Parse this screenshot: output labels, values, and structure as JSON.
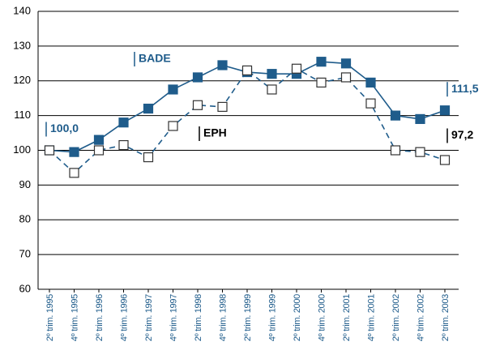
{
  "chart_data": {
    "type": "line",
    "categories": [
      "2º trim. 1995",
      "4º trim. 1995",
      "2º trim. 1996",
      "4º trim. 1996",
      "2º trim. 1997",
      "4º trim. 1997",
      "2º trim. 1998",
      "4º trim. 1998",
      "2º trim. 1999",
      "4º trim. 1999",
      "2º trim. 2000",
      "4º trim. 2000",
      "2º trim. 2001",
      "4º trim. 2001",
      "2º trim. 2002",
      "4º trim. 2002",
      "2º trim. 2003"
    ],
    "series": [
      {
        "name": "BADE",
        "color": "#1f5c8b",
        "marker_fill": "#1f5c8b",
        "dashed": false,
        "values": [
          100,
          99.5,
          103,
          108,
          112,
          117.5,
          121,
          124.5,
          122.5,
          122,
          122,
          125.5,
          125,
          119.5,
          110,
          109,
          111.5
        ],
        "value_labels": [
          "100,0",
          null,
          null,
          null,
          null,
          null,
          null,
          null,
          null,
          null,
          null,
          null,
          null,
          null,
          null,
          null,
          "111,5"
        ]
      },
      {
        "name": "EPH",
        "color": "#1f5c8b",
        "marker_fill": "#ffffff",
        "label_color": "#000000",
        "dashed": true,
        "values": [
          100,
          93.5,
          100,
          101.5,
          98,
          107,
          113,
          112.5,
          123,
          117.5,
          123.5,
          119.5,
          121,
          113.5,
          100,
          99.5,
          97.2
        ],
        "value_labels": [
          null,
          null,
          null,
          null,
          null,
          null,
          null,
          null,
          null,
          null,
          null,
          null,
          null,
          null,
          null,
          null,
          "97,2"
        ]
      }
    ],
    "ylim": [
      60,
      140
    ],
    "yticks": [
      60,
      70,
      80,
      90,
      100,
      110,
      120,
      130,
      140
    ],
    "grid": true
  }
}
